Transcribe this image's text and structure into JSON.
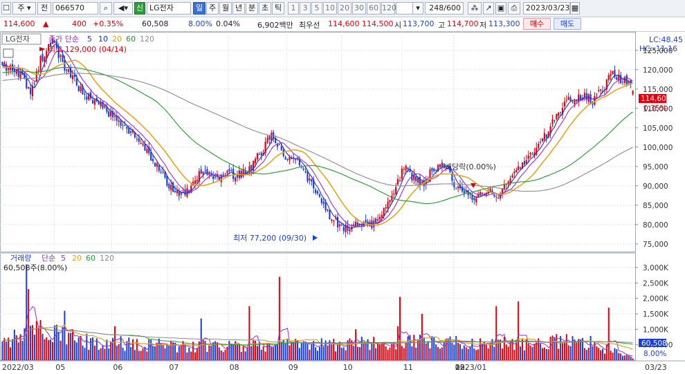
{
  "toolbar": {
    "market": "주",
    "prev": "전",
    "code": "066570",
    "search_icon": "search-icon",
    "sound_icon": "speaker-icon",
    "new_badge": "신",
    "name": "LG전자",
    "periods": [
      "일",
      "주",
      "월",
      "년",
      "분",
      "초",
      "틱"
    ],
    "active_period": "일",
    "intervals": [
      "1",
      "3",
      "5",
      "10",
      "20",
      "30",
      "60",
      "120"
    ],
    "count": "248/600",
    "date": "2023/03/23"
  },
  "infobar": {
    "price": "114,600",
    "change": "400",
    "change_pct": "+0.35%",
    "volume": "60,508",
    "vol_ratio": "8.00%",
    "turnover": "0.04%",
    "amount": "6,902백만",
    "best_label": "최우선",
    "best_ask": "114,600",
    "best_bid": "114,500",
    "open_label": "시",
    "open": "113,700",
    "high_label": "고",
    "high": "114,700",
    "low_label": "저",
    "low": "113,300",
    "buy_label": "매수",
    "sell_label": "매도"
  },
  "price_panel": {
    "legend_stock": "LG전자",
    "legend_type": "종가 단순",
    "ma_periods": [
      "5",
      "10",
      "20",
      "60",
      "120"
    ],
    "lc": "LC:48.45",
    "hc": "HC:-11.16",
    "current_price": "114,600",
    "current_pct": "0.35%",
    "high_note": "최고 129,000 (04/14)",
    "low_note": "최저 77,200 (09/30)",
    "dividend_note": "배당락(0.00%)"
  },
  "volume_panel": {
    "legend_name": "거래량",
    "legend_type": "단순",
    "ma_periods": [
      "5",
      "20",
      "60",
      "120"
    ],
    "current_volume": "60,508주(8.00%)",
    "current_volume_tag": "60,508",
    "current_pct_tag": "8.00%"
  },
  "colors": {
    "up": "#e0000e",
    "down": "#1a3fd6",
    "ma5": "#1a2fd0",
    "ma10": "#9d2bd0",
    "ma20": "#e8a318",
    "ma60": "#1c9a2d",
    "ma120": "#8a8a8a"
  },
  "chart_data": {
    "type": "candlestick",
    "x_ticks": [
      "2022/03",
      "05",
      "06",
      "07",
      "08",
      "09",
      "10",
      "11",
      "12",
      "2023/01",
      "02",
      "03"
    ],
    "x_edge_label": "03/23",
    "price_ticks": [
      "125,000",
      "120,000",
      "115,000",
      "110,000",
      "105,000",
      "100,000",
      "95,000",
      "90,000",
      "85,000",
      "80,000",
      "75,000"
    ],
    "price_range": [
      73000,
      129800
    ],
    "volume_ticks": [
      "3,000K",
      "2,500K",
      "2,000K",
      "1,500K",
      "1,000K",
      "500,000"
    ],
    "volume_range": [
      0,
      3200000
    ],
    "close_anchors": [
      [
        0,
        121500
      ],
      [
        10,
        118500
      ],
      [
        14,
        113500
      ],
      [
        19,
        122500
      ],
      [
        25,
        127000
      ],
      [
        30,
        121500
      ],
      [
        40,
        114000
      ],
      [
        50,
        110500
      ],
      [
        60,
        105000
      ],
      [
        68,
        102500
      ],
      [
        78,
        94000
      ],
      [
        86,
        88000
      ],
      [
        92,
        88500
      ],
      [
        98,
        93000
      ],
      [
        108,
        92500
      ],
      [
        115,
        92800
      ],
      [
        122,
        93500
      ],
      [
        128,
        98000
      ],
      [
        134,
        103000
      ],
      [
        140,
        98000
      ],
      [
        146,
        97000
      ],
      [
        152,
        92000
      ],
      [
        158,
        87500
      ],
      [
        164,
        81500
      ],
      [
        170,
        79000
      ],
      [
        178,
        80000
      ],
      [
        184,
        79500
      ],
      [
        188,
        81000
      ],
      [
        194,
        88000
      ],
      [
        200,
        94500
      ],
      [
        205,
        92000
      ],
      [
        210,
        90000
      ],
      [
        214,
        94500
      ],
      [
        219,
        96000
      ],
      [
        224,
        91500
      ],
      [
        230,
        87500
      ],
      [
        236,
        87000
      ],
      [
        242,
        89500
      ],
      [
        246,
        87000
      ],
      [
        250,
        90000
      ],
      [
        256,
        94500
      ],
      [
        262,
        97000
      ],
      [
        268,
        101000
      ],
      [
        276,
        108000
      ],
      [
        282,
        112000
      ],
      [
        288,
        113500
      ],
      [
        294,
        112000
      ],
      [
        300,
        115500
      ],
      [
        304,
        119500
      ],
      [
        308,
        117000
      ],
      [
        312,
        117200
      ],
      [
        314,
        114600
      ]
    ],
    "volume_anchors": [
      [
        0,
        500000
      ],
      [
        12,
        900000
      ],
      [
        25,
        1000000
      ],
      [
        40,
        600000
      ],
      [
        60,
        550000
      ],
      [
        90,
        450000
      ],
      [
        120,
        480000
      ],
      [
        150,
        500000
      ],
      [
        170,
        520000
      ],
      [
        200,
        600000
      ],
      [
        230,
        560000
      ],
      [
        260,
        540000
      ],
      [
        290,
        620000
      ],
      [
        314,
        60508
      ]
    ],
    "volume_spikes": [
      [
        12,
        3100000
      ],
      [
        13,
        2300000
      ],
      [
        31,
        1600000
      ],
      [
        56,
        1100000
      ],
      [
        99,
        1350000
      ],
      [
        123,
        1750000
      ],
      [
        138,
        2700000
      ],
      [
        176,
        1000000
      ],
      [
        197,
        1100000
      ],
      [
        198,
        2050000
      ],
      [
        209,
        1500000
      ],
      [
        246,
        1750000
      ],
      [
        257,
        1900000
      ],
      [
        302,
        1700000
      ]
    ],
    "ma_series": [
      {
        "name": "5",
        "color_key": "ma5"
      },
      {
        "name": "10",
        "color_key": "ma10"
      },
      {
        "name": "20",
        "color_key": "ma20"
      },
      {
        "name": "60",
        "color_key": "ma60"
      },
      {
        "name": "120",
        "color_key": "ma120"
      }
    ]
  }
}
